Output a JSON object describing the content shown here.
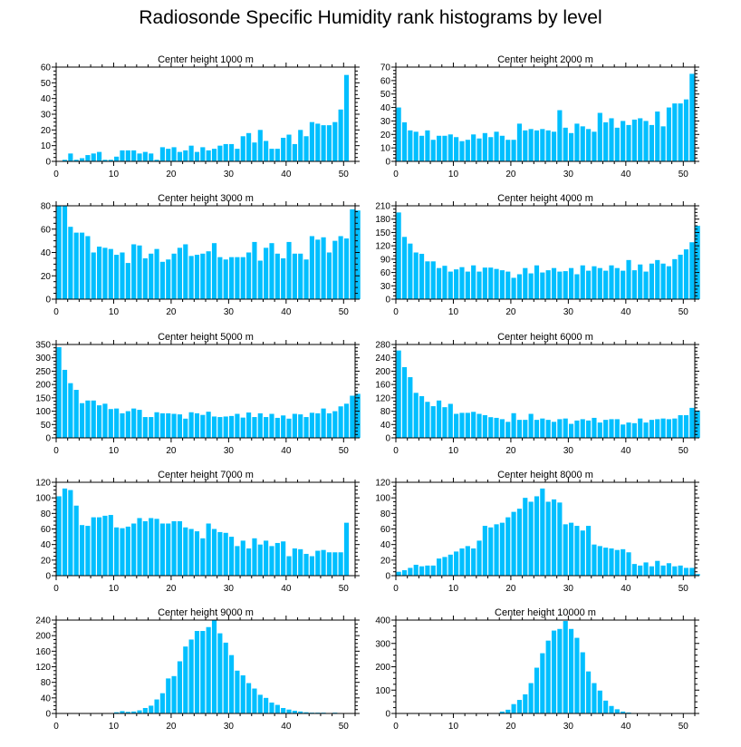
{
  "title": "Radiosonde Specific Humidity rank histograms by level",
  "bar_color": "#00bfff",
  "chart_data": [
    {
      "type": "bar",
      "title": "Center height 1000 m",
      "xlim": [
        0,
        52
      ],
      "xticks": [
        0,
        10,
        20,
        30,
        40,
        50
      ],
      "ylim": [
        0,
        60
      ],
      "yticks": [
        0,
        10,
        20,
        30,
        40,
        50,
        60
      ],
      "values": [
        0,
        1,
        5,
        1,
        2,
        4,
        5,
        6,
        1,
        1,
        3,
        7,
        7,
        7,
        5,
        6,
        5,
        1,
        9,
        8,
        9,
        6,
        7,
        10,
        6,
        9,
        7,
        8,
        10,
        11,
        11,
        8,
        16,
        18,
        12,
        20,
        13,
        8,
        8,
        15,
        17,
        11,
        20,
        16,
        25,
        24,
        23,
        23,
        25,
        33,
        55
      ]
    },
    {
      "type": "bar",
      "title": "Center height 2000 m",
      "xlim": [
        0,
        52
      ],
      "xticks": [
        0,
        10,
        20,
        30,
        40,
        50
      ],
      "ylim": [
        0,
        70
      ],
      "yticks": [
        0,
        10,
        20,
        30,
        40,
        50,
        60,
        70
      ],
      "values": [
        40,
        29,
        23,
        22,
        19,
        23,
        16,
        19,
        19,
        20,
        18,
        15,
        16,
        20,
        17,
        21,
        18,
        22,
        19,
        16,
        16,
        28,
        23,
        24,
        23,
        24,
        23,
        22,
        38,
        25,
        21,
        28,
        26,
        24,
        22,
        36,
        29,
        32,
        25,
        30,
        27,
        31,
        32,
        30,
        27,
        37,
        26,
        40,
        43,
        43,
        46,
        65
      ]
    },
    {
      "type": "bar",
      "title": "Center height 3000 m",
      "xlim": [
        0,
        52
      ],
      "xticks": [
        0,
        10,
        20,
        30,
        40,
        50
      ],
      "ylim": [
        0,
        80
      ],
      "yticks": [
        0,
        20,
        40,
        60,
        80
      ],
      "values": [
        80,
        80,
        62,
        57,
        57,
        54,
        40,
        45,
        44,
        43,
        38,
        40,
        31,
        47,
        46,
        35,
        39,
        43,
        32,
        34,
        39,
        44,
        47,
        37,
        38,
        39,
        41,
        48,
        36,
        34,
        36,
        36,
        36,
        40,
        49,
        33,
        44,
        48,
        39,
        35,
        49,
        39,
        39,
        34,
        54,
        51,
        53,
        40,
        50,
        54,
        52,
        77,
        76
      ]
    },
    {
      "type": "bar",
      "title": "Center height 4000 m",
      "xlim": [
        0,
        52
      ],
      "xticks": [
        0,
        10,
        20,
        30,
        40,
        50
      ],
      "ylim": [
        0,
        210
      ],
      "yticks": [
        0,
        30,
        60,
        90,
        120,
        150,
        180,
        210
      ],
      "values": [
        195,
        140,
        125,
        105,
        102,
        85,
        85,
        70,
        75,
        62,
        67,
        72,
        62,
        76,
        62,
        71,
        71,
        68,
        65,
        62,
        48,
        56,
        70,
        58,
        76,
        60,
        65,
        70,
        62,
        63,
        70,
        56,
        76,
        64,
        74,
        70,
        64,
        76,
        70,
        64,
        88,
        65,
        78,
        62,
        80,
        88,
        80,
        74,
        90,
        100,
        112,
        128,
        165
      ]
    },
    {
      "type": "bar",
      "title": "Center height 5000 m",
      "xlim": [
        0,
        52
      ],
      "xticks": [
        0,
        10,
        20,
        30,
        40,
        50
      ],
      "ylim": [
        0,
        350
      ],
      "yticks": [
        0,
        50,
        100,
        150,
        200,
        250,
        300,
        350
      ],
      "values": [
        340,
        255,
        205,
        180,
        130,
        140,
        140,
        122,
        128,
        108,
        110,
        92,
        100,
        110,
        105,
        78,
        78,
        96,
        92,
        92,
        90,
        88,
        72,
        96,
        92,
        86,
        98,
        80,
        78,
        80,
        82,
        90,
        76,
        95,
        78,
        92,
        78,
        90,
        75,
        84,
        72,
        90,
        88,
        78,
        94,
        92,
        110,
        92,
        100,
        118,
        128,
        158,
        165
      ]
    },
    {
      "type": "bar",
      "title": "Center height 6000 m",
      "xlim": [
        0,
        52
      ],
      "xticks": [
        0,
        10,
        20,
        30,
        40,
        50
      ],
      "ylim": [
        0,
        280
      ],
      "yticks": [
        0,
        40,
        80,
        120,
        160,
        200,
        240,
        280
      ],
      "values": [
        262,
        212,
        182,
        135,
        125,
        108,
        95,
        112,
        92,
        102,
        72,
        75,
        75,
        78,
        72,
        68,
        62,
        60,
        56,
        48,
        74,
        54,
        54,
        72,
        54,
        58,
        54,
        48,
        56,
        58,
        42,
        52,
        56,
        52,
        60,
        46,
        54,
        56,
        56,
        40,
        46,
        44,
        58,
        46,
        54,
        56,
        58,
        56,
        58,
        68,
        68,
        90,
        82
      ]
    },
    {
      "type": "bar",
      "title": "Center height 7000 m",
      "xlim": [
        0,
        52
      ],
      "xticks": [
        0,
        10,
        20,
        30,
        40,
        50
      ],
      "ylim": [
        0,
        120
      ],
      "yticks": [
        0,
        20,
        40,
        60,
        80,
        100,
        120
      ],
      "values": [
        102,
        112,
        110,
        90,
        65,
        64,
        75,
        75,
        77,
        78,
        62,
        61,
        63,
        67,
        74,
        70,
        74,
        73,
        67,
        67,
        70,
        70,
        62,
        60,
        57,
        48,
        67,
        60,
        56,
        55,
        50,
        38,
        45,
        35,
        48,
        40,
        45,
        38,
        42,
        44,
        25,
        35,
        34,
        28,
        25,
        32,
        33,
        30,
        30,
        30,
        68
      ]
    },
    {
      "type": "bar",
      "title": "Center height 8000 m",
      "xlim": [
        0,
        52
      ],
      "xticks": [
        0,
        10,
        20,
        30,
        40,
        50
      ],
      "ylim": [
        0,
        120
      ],
      "yticks": [
        0,
        20,
        40,
        60,
        80,
        100,
        120
      ],
      "values": [
        5,
        7,
        10,
        14,
        12,
        13,
        13,
        22,
        24,
        27,
        31,
        35,
        38,
        35,
        45,
        64,
        62,
        66,
        68,
        75,
        82,
        86,
        100,
        95,
        102,
        112,
        95,
        98,
        94,
        66,
        68,
        64,
        58,
        64,
        40,
        38,
        36,
        35,
        33,
        34,
        30,
        15,
        13,
        17,
        12,
        19,
        13,
        16,
        12,
        13,
        10,
        10,
        2
      ]
    },
    {
      "type": "bar",
      "title": "Center height 9000 m",
      "xlim": [
        0,
        52
      ],
      "xticks": [
        0,
        10,
        20,
        30,
        40,
        50
      ],
      "ylim": [
        0,
        240
      ],
      "yticks": [
        0,
        40,
        80,
        120,
        160,
        200,
        240
      ],
      "values": [
        0,
        0,
        0,
        0,
        0,
        0,
        0,
        0,
        0,
        0,
        3,
        6,
        4,
        5,
        8,
        14,
        20,
        36,
        52,
        90,
        96,
        134,
        172,
        190,
        212,
        212,
        222,
        240,
        206,
        182,
        150,
        110,
        98,
        78,
        64,
        48,
        40,
        28,
        22,
        14,
        10,
        7,
        5,
        3,
        2,
        2,
        2,
        1,
        2,
        1,
        1
      ]
    },
    {
      "type": "bar",
      "title": "Center height 10000 m",
      "xlim": [
        0,
        52
      ],
      "xticks": [
        0,
        10,
        20,
        30,
        40,
        50
      ],
      "ylim": [
        0,
        400
      ],
      "yticks": [
        0,
        100,
        200,
        300,
        400
      ],
      "values": [
        0,
        0,
        0,
        0,
        0,
        0,
        0,
        0,
        0,
        0,
        0,
        0,
        0,
        0,
        0,
        0,
        0,
        2,
        8,
        16,
        40,
        58,
        82,
        130,
        196,
        258,
        312,
        355,
        362,
        396,
        362,
        324,
        262,
        180,
        130,
        98,
        55,
        32,
        18,
        8,
        4,
        2,
        1,
        0,
        0,
        0,
        0,
        0,
        0,
        0,
        0,
        0,
        0
      ]
    }
  ]
}
